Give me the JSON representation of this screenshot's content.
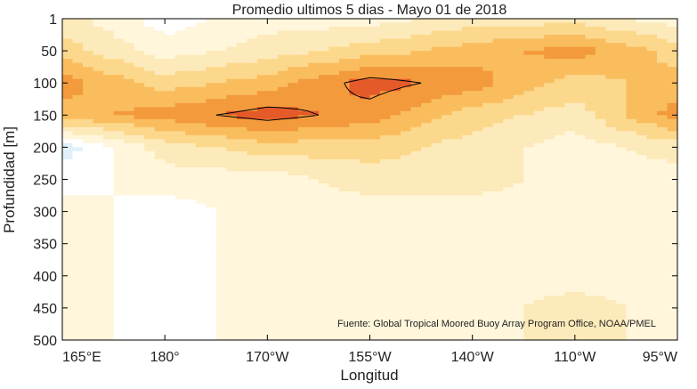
{
  "chart_data": {
    "type": "heatmap",
    "title": "Promedio ultimos 5 dias - Mayo 01 de 2018",
    "xlabel": "Longitud",
    "ylabel": "Profundidad [m]",
    "x_tick_labels": [
      "165°E",
      "180°",
      "170°W",
      "155°W",
      "140°W",
      "110°W",
      "95°W"
    ],
    "y_tick_labels": [
      "1",
      "50",
      "100",
      "150",
      "200",
      "250",
      "300",
      "350",
      "400",
      "450",
      "500"
    ],
    "columns": [
      "165°E",
      "180°",
      "170°W",
      "155°W",
      "140°W",
      "110°W",
      "95°W"
    ],
    "rows": [
      1,
      50,
      100,
      150,
      200,
      250,
      300,
      350,
      400,
      450,
      500
    ],
    "values": [
      [
        2,
        0,
        1,
        1,
        2,
        2,
        1
      ],
      [
        3,
        1,
        2,
        3,
        4,
        5,
        3
      ],
      [
        5,
        3,
        4,
        6,
        5,
        3,
        4
      ],
      [
        4,
        5,
        6,
        5,
        3,
        2,
        5
      ],
      [
        -1,
        2,
        3,
        3,
        2,
        1,
        2
      ],
      [
        0,
        1,
        1,
        2,
        2,
        1,
        1
      ],
      [
        1,
        0,
        1,
        1,
        1,
        1,
        1
      ],
      [
        1,
        0,
        1,
        1,
        1,
        1,
        1
      ],
      [
        1,
        0,
        1,
        1,
        1,
        1,
        1
      ],
      [
        1,
        0,
        1,
        1,
        1,
        2,
        1
      ],
      [
        1,
        0,
        1,
        1,
        1,
        2,
        1
      ]
    ],
    "level_colors": {
      "-1": "#dff0f8",
      "0": "#ffffff",
      "1": "#fff6db",
      "2": "#fdeaba",
      "3": "#fcd88c",
      "4": "#f9bd5e",
      "5": "#f39a3c",
      "6": "#e55a29"
    },
    "contour_color": "#000000",
    "grid": false,
    "source_note": "Fuente: Global Tropical Moored Buoy Array Program Office, NOAA/PMEL"
  }
}
